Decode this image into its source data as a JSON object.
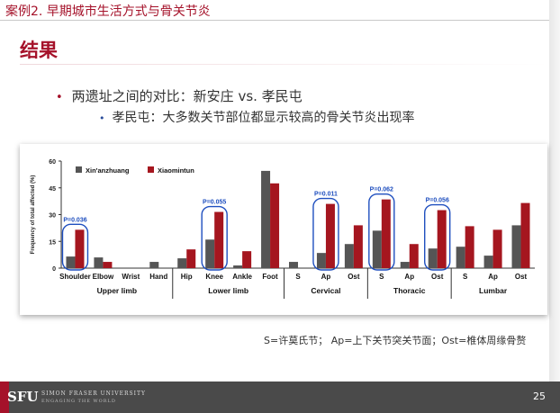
{
  "header": {
    "title": "案例2. 早期城市生活方式与骨关节炎"
  },
  "slide": {
    "title": "结果",
    "bullet1": "两遗址之间的对比：新安庄  vs.  孝民屯",
    "bullet2": "孝民屯：大多数关节部位都显示较高的骨关节炎出现率",
    "bullet_marker": "•",
    "footnote": "S=许莫氏节；  Ap=上下关节突关节面；Ost=椎体周缘骨赘",
    "page_number": "25"
  },
  "footer": {
    "logo_text": "SFU",
    "university": "SIMON FRASER UNIVERSITY",
    "tagline": "ENGAGING THE WORLD"
  },
  "chart_data": {
    "type": "bar",
    "ylabel": "Frequency of total affected (%)",
    "ylim": [
      0,
      60
    ],
    "yticks": [
      0,
      15,
      30,
      45,
      60
    ],
    "legend_placement": "top-left",
    "categories": [
      "Shoulder",
      "Elbow",
      "Wrist",
      "Hand",
      "Hip",
      "Knee",
      "Ankle",
      "Foot",
      "S",
      "Ap",
      "Ost",
      "S",
      "Ap",
      "Ost",
      "S",
      "Ap",
      "Ost"
    ],
    "groups": [
      {
        "label": "Upper limb",
        "start": 0,
        "end": 3
      },
      {
        "label": "Lower limb",
        "start": 4,
        "end": 7
      },
      {
        "label": "Cervical",
        "start": 8,
        "end": 10
      },
      {
        "label": "Thoracic",
        "start": 11,
        "end": 13
      },
      {
        "label": "Lumbar",
        "start": 14,
        "end": 16
      }
    ],
    "series": [
      {
        "name": "Xin'anzhuang",
        "color": "#555555",
        "values": [
          6.5,
          6,
          0,
          3.5,
          5.5,
          16,
          1.5,
          54.5,
          3.5,
          8.5,
          13.5,
          21,
          3.5,
          11,
          12,
          7,
          24
        ]
      },
      {
        "name": "Xiaomintun",
        "color": "#a5161f",
        "values": [
          21.5,
          3.5,
          0,
          0,
          10.5,
          31.5,
          9.5,
          47.5,
          0,
          36,
          24,
          38.5,
          13.5,
          32.5,
          23.5,
          21.5,
          36.5
        ]
      }
    ],
    "annotations": [
      {
        "text": "P=0.036",
        "category_index": 0
      },
      {
        "text": "P=0.055",
        "category_index": 5
      },
      {
        "text": "P=0.011",
        "category_index": 9
      },
      {
        "text": "P=0.062",
        "category_index": 11
      },
      {
        "text": "P=0.056",
        "category_index": 13
      }
    ],
    "highlight_color": "#1f4fbf"
  }
}
